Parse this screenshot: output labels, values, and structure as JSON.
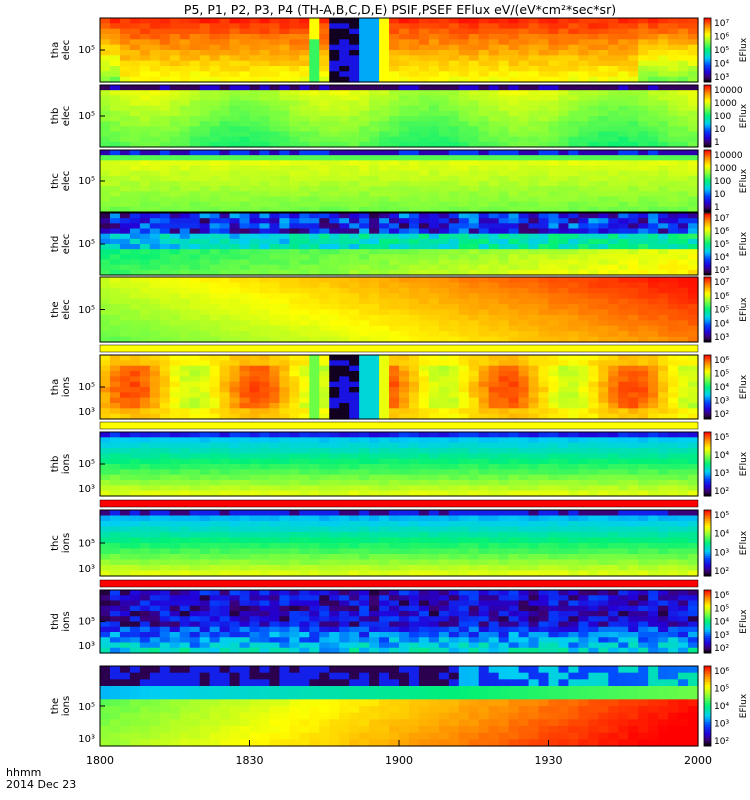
{
  "title": "P5, P1, P2, P3, P4  (TH-A,B,C,D,E) PSIF,PSEF EFlux eV/(eV*cm²*sec*sr)",
  "xaxis": {
    "label": "hhmm",
    "date": "2014 Dec 23",
    "ticks": [
      "1800",
      "1830",
      "1900",
      "1930",
      "2000"
    ],
    "range_minutes": [
      0,
      120
    ]
  },
  "colorbar_unit": "EFlux",
  "chart_data": [
    {
      "type": "heatmap",
      "probe": "tha",
      "species": "elec",
      "label_lines": [
        "tha",
        "elec"
      ],
      "ytick": "10⁵",
      "colorbar_ticks": [
        "10⁷",
        "10⁶",
        "10⁵",
        "10⁴",
        "10³"
      ],
      "profile": "tha_elec"
    },
    {
      "type": "heatmap",
      "probe": "thb",
      "species": "elec",
      "label_lines": [
        "thb",
        "elec"
      ],
      "ytick": "10⁵",
      "colorbar_ticks": [
        "10000",
        "1000",
        "100",
        "10",
        "1"
      ],
      "profile": "thb_elec"
    },
    {
      "type": "heatmap",
      "probe": "thc",
      "species": "elec",
      "label_lines": [
        "thc",
        "elec"
      ],
      "ytick": "10⁵",
      "colorbar_ticks": [
        "10000",
        "1000",
        "100",
        "10",
        "1"
      ],
      "profile": "thc_elec"
    },
    {
      "type": "heatmap",
      "probe": "thd",
      "species": "elec",
      "label_lines": [
        "thd",
        "elec"
      ],
      "ytick": "10⁵",
      "colorbar_ticks": [
        "10⁷",
        "10⁶",
        "10⁵",
        "10⁴",
        "10³"
      ],
      "profile": "thd_elec"
    },
    {
      "type": "heatmap",
      "probe": "the",
      "species": "elec",
      "label_lines": [
        "the",
        "elec"
      ],
      "ytick": "10⁵",
      "colorbar_ticks": [
        "10⁷",
        "10⁶",
        "10⁵",
        "10⁴",
        "10³"
      ],
      "profile": "the_elec"
    },
    {
      "type": "heatmap",
      "probe": "tha",
      "species": "ions",
      "label_lines": [
        "tha",
        "ions"
      ],
      "ytick": "10⁵",
      "ytick2": "10³",
      "colorbar_ticks": [
        "10⁶",
        "10⁵",
        "10⁴",
        "10³",
        "10²"
      ],
      "profile": "tha_ions",
      "stripe": "#ffff00"
    },
    {
      "type": "heatmap",
      "probe": "thb",
      "species": "ions",
      "label_lines": [
        "thb",
        "ions"
      ],
      "ytick": "10⁵",
      "ytick2": "10³",
      "colorbar_ticks": [
        "10⁵",
        "10⁴",
        "10³",
        "10²"
      ],
      "profile": "thb_ions",
      "stripe": "#ffff00"
    },
    {
      "type": "heatmap",
      "probe": "thc",
      "species": "ions",
      "label_lines": [
        "thc",
        "ions"
      ],
      "ytick": "10⁵",
      "ytick2": "10³",
      "colorbar_ticks": [
        "10⁵",
        "10⁴",
        "10³",
        "10²"
      ],
      "profile": "thc_ions",
      "stripe": "#ff0000"
    },
    {
      "type": "heatmap",
      "probe": "thd",
      "species": "ions",
      "label_lines": [
        "thd",
        "ions"
      ],
      "ytick": "10⁵",
      "ytick2": "10³",
      "colorbar_ticks": [
        "10⁶",
        "10⁵",
        "10⁴",
        "10³",
        "10²"
      ],
      "profile": "thd_ions",
      "stripe": "#ff0000"
    },
    {
      "type": "heatmap",
      "probe": "the",
      "species": "ions",
      "label_lines": [
        "the",
        "ions"
      ],
      "ytick": "10⁵",
      "ytick2": "10³",
      "colorbar_ticks": [
        "10⁶",
        "10⁵",
        "10⁴",
        "10³",
        "10²"
      ],
      "profile": "the_ions"
    }
  ]
}
